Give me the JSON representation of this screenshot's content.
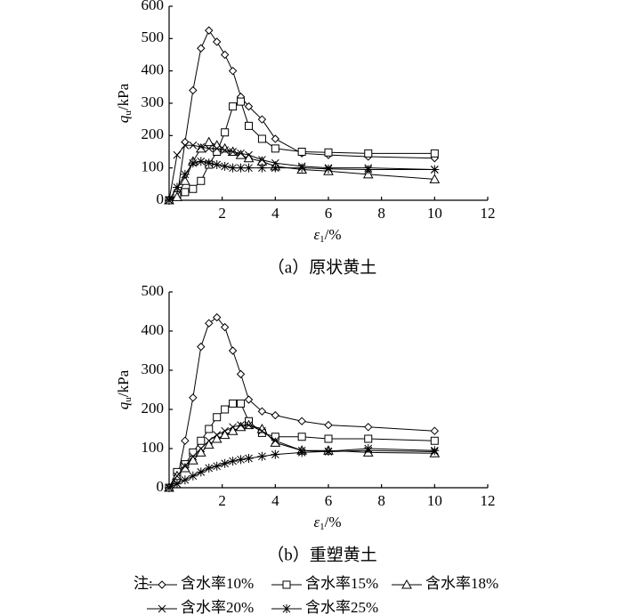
{
  "chart_data": [
    {
      "type": "line",
      "caption": "（a）原状黄土",
      "ylabel": {
        "symbol": "q",
        "subscript": "u",
        "unit": "/kPa"
      },
      "xlabel": {
        "symbol": "ε",
        "subscript": "1",
        "unit": "/%"
      },
      "xlim": [
        0,
        12
      ],
      "xticks": [
        2,
        4,
        6,
        8,
        10,
        12
      ],
      "ylim": [
        0,
        600
      ],
      "yticks": [
        0,
        100,
        200,
        300,
        400,
        500,
        600
      ],
      "x": [
        0,
        0.3,
        0.6,
        0.9,
        1.2,
        1.5,
        1.8,
        2.1,
        2.4,
        2.7,
        3.0,
        3.5,
        4.0,
        5.0,
        6.0,
        7.5,
        10
      ],
      "series": [
        {
          "name": "含水率10%",
          "color": "#000000",
          "marker": "diamond",
          "values": [
            0,
            10,
            180,
            340,
            470,
            525,
            490,
            450,
            400,
            320,
            290,
            250,
            190,
            145,
            140,
            135,
            130
          ]
        },
        {
          "name": "含水率15%",
          "color": "#000000",
          "marker": "square",
          "values": [
            0,
            15,
            25,
            35,
            60,
            110,
            150,
            210,
            290,
            305,
            230,
            190,
            160,
            150,
            148,
            145,
            145
          ]
        },
        {
          "name": "含水率18%",
          "color": "#000000",
          "marker": "triangle",
          "values": [
            0,
            10,
            60,
            120,
            160,
            180,
            170,
            160,
            150,
            140,
            130,
            120,
            105,
            95,
            90,
            80,
            65
          ]
        },
        {
          "name": "含水率20%",
          "color": "#000000",
          "marker": "cross",
          "values": [
            0,
            140,
            170,
            170,
            165,
            160,
            160,
            155,
            150,
            145,
            140,
            125,
            115,
            105,
            100,
            100,
            95
          ]
        },
        {
          "name": "含水率25%",
          "color": "#000000",
          "marker": "star",
          "values": [
            0,
            40,
            80,
            115,
            120,
            115,
            110,
            105,
            100,
            100,
            100,
            100,
            100,
            100,
            97,
            95,
            95
          ]
        }
      ]
    },
    {
      "type": "line",
      "caption": "（b）重塑黄土",
      "ylabel": {
        "symbol": "q",
        "subscript": "u",
        "unit": "/kPa"
      },
      "xlabel": {
        "symbol": "ε",
        "subscript": "1",
        "unit": "/%"
      },
      "xlim": [
        0,
        12
      ],
      "xticks": [
        2,
        4,
        6,
        8,
        10,
        12
      ],
      "ylim": [
        0,
        500
      ],
      "yticks": [
        0,
        100,
        200,
        300,
        400,
        500
      ],
      "x": [
        0,
        0.3,
        0.6,
        0.9,
        1.2,
        1.5,
        1.8,
        2.1,
        2.4,
        2.7,
        3.0,
        3.5,
        4.0,
        5.0,
        6.0,
        7.5,
        10
      ],
      "series": [
        {
          "name": "含水率10%",
          "color": "#000000",
          "marker": "diamond",
          "values": [
            0,
            20,
            120,
            230,
            360,
            420,
            435,
            410,
            350,
            290,
            225,
            195,
            185,
            170,
            160,
            155,
            145
          ]
        },
        {
          "name": "含水率15%",
          "color": "#000000",
          "marker": "square",
          "values": [
            0,
            40,
            60,
            90,
            120,
            150,
            180,
            200,
            215,
            215,
            170,
            140,
            130,
            130,
            125,
            125,
            120
          ]
        },
        {
          "name": "含水率18%",
          "color": "#000000",
          "marker": "triangle",
          "values": [
            0,
            30,
            50,
            70,
            90,
            110,
            125,
            135,
            145,
            155,
            160,
            150,
            115,
            95,
            95,
            90,
            88
          ]
        },
        {
          "name": "含水率20%",
          "color": "#000000",
          "marker": "cross",
          "values": [
            0,
            30,
            55,
            80,
            100,
            120,
            135,
            145,
            155,
            160,
            160,
            145,
            120,
            95,
            92,
            95,
            92
          ]
        },
        {
          "name": "含水率25%",
          "color": "#000000",
          "marker": "star",
          "values": [
            0,
            10,
            20,
            30,
            40,
            50,
            55,
            62,
            68,
            72,
            75,
            80,
            85,
            90,
            93,
            100,
            95
          ]
        }
      ]
    }
  ],
  "legend": {
    "note": "注:"
  }
}
